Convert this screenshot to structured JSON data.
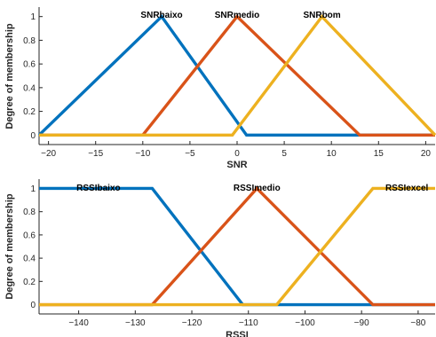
{
  "chart_data": [
    {
      "type": "line",
      "xlabel": "SNR",
      "ylabel": "Degree of membership",
      "xlim": [
        -21,
        21
      ],
      "ylim": [
        -0.08,
        1.08
      ],
      "xticks": [
        -20,
        -15,
        -10,
        -5,
        0,
        5,
        10,
        15,
        20
      ],
      "yticks": [
        0,
        0.2,
        0.4,
        0.6,
        0.8,
        1
      ],
      "grid": false,
      "series": [
        {
          "name": "SNRbaixo",
          "color": "#0072BD",
          "x": [
            -21,
            -8,
            1,
            21
          ],
          "y": [
            0,
            1,
            0,
            0
          ]
        },
        {
          "name": "SNRmedio",
          "color": "#D95319",
          "x": [
            -21,
            -10,
            0,
            13,
            21
          ],
          "y": [
            0,
            0,
            1,
            0,
            0
          ]
        },
        {
          "name": "SNRbom",
          "color": "#EDB120",
          "x": [
            -21,
            -0.5,
            9,
            21
          ],
          "y": [
            0,
            0,
            1,
            0
          ]
        }
      ],
      "annotations": [
        {
          "text": "SNRbaixo",
          "x": -8
        },
        {
          "text": "SNRmedio",
          "x": 0
        },
        {
          "text": "SNRbom",
          "x": 9
        }
      ]
    },
    {
      "type": "line",
      "xlabel": "RSSI",
      "ylabel": "Degree of membership",
      "xlim": [
        -147,
        -77
      ],
      "ylim": [
        -0.08,
        1.08
      ],
      "xticks": [
        -140,
        -130,
        -120,
        -110,
        -100,
        -90,
        -80
      ],
      "yticks": [
        0,
        0.2,
        0.4,
        0.6,
        0.8,
        1
      ],
      "grid": false,
      "series": [
        {
          "name": "RSSIbaixo",
          "color": "#0072BD",
          "x": [
            -147,
            -127,
            -111,
            -77
          ],
          "y": [
            1,
            1,
            0,
            0
          ]
        },
        {
          "name": "RSSImedio",
          "color": "#D95319",
          "x": [
            -147,
            -127,
            -108.5,
            -88,
            -77
          ],
          "y": [
            0,
            0,
            1,
            0,
            0
          ]
        },
        {
          "name": "RSSIexcel",
          "color": "#EDB120",
          "x": [
            -147,
            -105,
            -88,
            -77
          ],
          "y": [
            0,
            0,
            1,
            1
          ]
        }
      ],
      "annotations": [
        {
          "text": "RSSIbaixo",
          "x": -136.5
        },
        {
          "text": "RSSImedio",
          "x": -108.5
        },
        {
          "text": "RSSIexcel",
          "x": -82
        }
      ]
    }
  ]
}
